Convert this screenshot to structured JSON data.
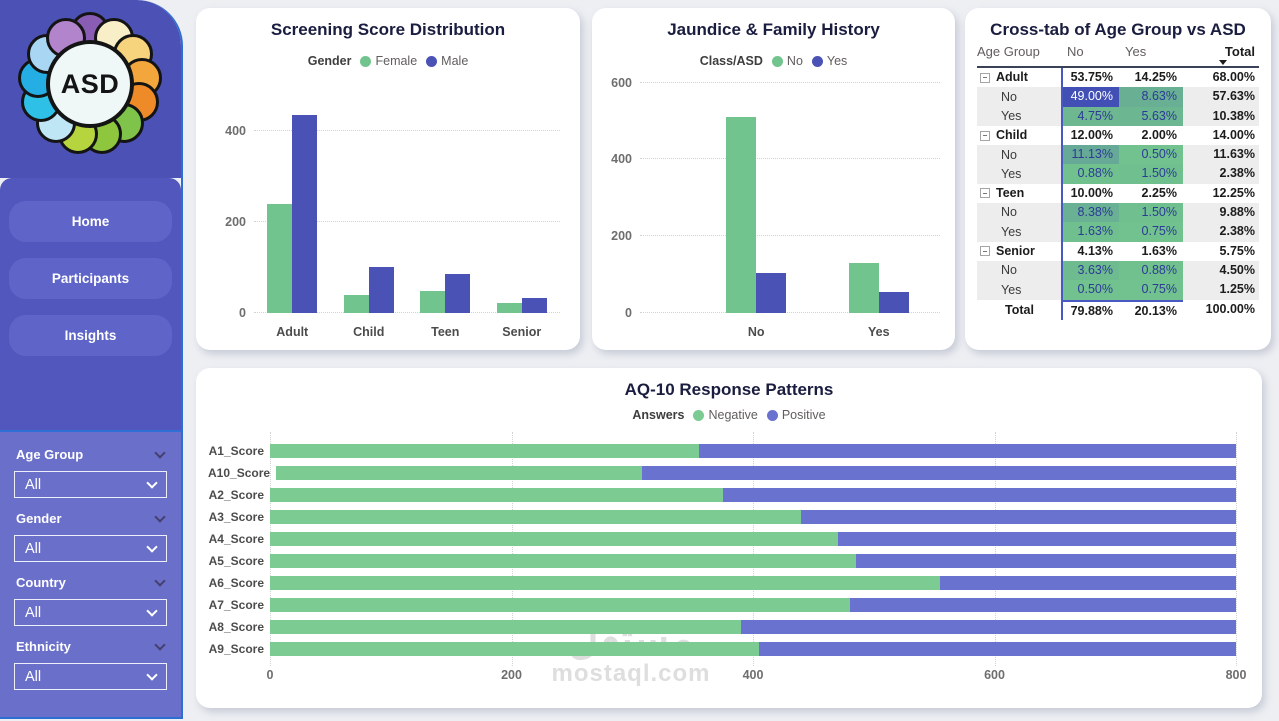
{
  "sidebar": {
    "logo": {
      "text": "ASD",
      "petal_colors": [
        "#8a5db4",
        "#f8efc9",
        "#f6d47e",
        "#f2a63b",
        "#ee8a27",
        "#7fc34a",
        "#8ec63e",
        "#b5d43e",
        "#bfe6f5",
        "#2fc0e8",
        "#25aee3",
        "#a9d7f3",
        "#b184cb"
      ]
    },
    "nav": [
      {
        "label": "Home"
      },
      {
        "label": "Participants"
      },
      {
        "label": "Insights"
      }
    ],
    "filters": [
      {
        "label": "Age Group",
        "value": "All"
      },
      {
        "label": "Gender",
        "value": "All"
      },
      {
        "label": "Country",
        "value": "All"
      },
      {
        "label": "Ethnicity",
        "value": "All"
      }
    ]
  },
  "watermark": {
    "arabic": "مستقل",
    "domain": "mostaql.com"
  },
  "chart_data": [
    {
      "type": "bar",
      "title": "Screening Score Distribution",
      "legend_title": "Gender",
      "legend_position": "top",
      "grid": true,
      "categories": [
        "Adult",
        "Child",
        "Teen",
        "Senior"
      ],
      "series": [
        {
          "name": "Female",
          "color": "#72c48e",
          "values": [
            240,
            40,
            48,
            22
          ]
        },
        {
          "name": "Male",
          "color": "#4b52b6",
          "values": [
            435,
            100,
            85,
            32
          ]
        }
      ],
      "yticks": [
        0,
        200,
        400
      ],
      "ylim": [
        0,
        450
      ],
      "xlabel": "",
      "ylabel": ""
    },
    {
      "type": "bar",
      "title": "Jaundice & Family History",
      "legend_title": "Class/ASD",
      "legend_position": "top",
      "grid": true,
      "categories": [
        "No",
        "Yes"
      ],
      "series": [
        {
          "name": "No",
          "color": "#72c48e",
          "values": [
            510,
            130
          ]
        },
        {
          "name": "Yes",
          "color": "#4b52b6",
          "values": [
            105,
            55
          ]
        }
      ],
      "yticks": [
        0,
        200,
        400,
        600
      ],
      "ylim": [
        0,
        620
      ],
      "xlabel": "",
      "ylabel": ""
    },
    {
      "type": "table",
      "title": "Cross-tab of Age Group vs ASD",
      "columns": [
        "Age Group",
        "No",
        "Yes",
        "Total"
      ],
      "sorted_by": "Total",
      "rows": [
        {
          "level": "parent",
          "label": "Adult",
          "no": "53.75%",
          "yes": "14.25%",
          "total": "68.00%"
        },
        {
          "level": "sub",
          "label": "No",
          "no": "49.00%",
          "yes": "8.63%",
          "total": "57.63%",
          "no_bg": "#4250b5",
          "no_fg": "#ffffff",
          "yes_bg": "#69af94",
          "yes_fg": "#2c3a96"
        },
        {
          "level": "sub",
          "label": "Yes",
          "no": "4.75%",
          "yes": "5.63%",
          "total": "10.38%",
          "no_bg": "#6db891",
          "no_fg": "#2c3a96",
          "yes_bg": "#6cb692",
          "yes_fg": "#2c3a96"
        },
        {
          "level": "parent",
          "label": "Child",
          "no": "12.00%",
          "yes": "2.00%",
          "total": "14.00%"
        },
        {
          "level": "sub",
          "label": "No",
          "no": "11.13%",
          "yes": "0.50%",
          "total": "11.63%",
          "no_bg": "#67a997",
          "no_fg": "#2c3a96",
          "yes_bg": "#71c28e",
          "yes_fg": "#2c3a96"
        },
        {
          "level": "sub",
          "label": "Yes",
          "no": "0.88%",
          "yes": "1.50%",
          "total": "2.38%",
          "no_bg": "#71c18e",
          "no_fg": "#2c3a96",
          "yes_bg": "#70c08f",
          "yes_fg": "#2c3a96"
        },
        {
          "level": "parent",
          "label": "Teen",
          "no": "10.00%",
          "yes": "2.25%",
          "total": "12.25%"
        },
        {
          "level": "sub",
          "label": "No",
          "no": "8.38%",
          "yes": "1.50%",
          "total": "9.88%",
          "no_bg": "#69b094",
          "no_fg": "#2c3a96",
          "yes_bg": "#70c08f",
          "yes_fg": "#2c3a96"
        },
        {
          "level": "sub",
          "label": "Yes",
          "no": "1.63%",
          "yes": "0.75%",
          "total": "2.38%",
          "no_bg": "#70c08f",
          "no_fg": "#2c3a96",
          "yes_bg": "#71c28e",
          "yes_fg": "#2c3a96"
        },
        {
          "level": "parent",
          "label": "Senior",
          "no": "4.13%",
          "yes": "1.63%",
          "total": "5.75%"
        },
        {
          "level": "sub",
          "label": "No",
          "no": "3.63%",
          "yes": "0.88%",
          "total": "4.50%",
          "no_bg": "#6ebb90",
          "no_fg": "#2c3a96",
          "yes_bg": "#71c18e",
          "yes_fg": "#2c3a96"
        },
        {
          "level": "sub",
          "label": "Yes",
          "no": "0.50%",
          "yes": "0.75%",
          "total": "1.25%",
          "no_bg": "#71c28e",
          "no_fg": "#2c3a96",
          "yes_bg": "#71c28e",
          "yes_fg": "#2c3a96"
        },
        {
          "level": "grand",
          "label": "Total",
          "no": "79.88%",
          "yes": "20.13%",
          "total": "100.00%"
        }
      ]
    },
    {
      "type": "bar",
      "orientation": "horizontal",
      "stacked": true,
      "title": "AQ-10 Response Patterns",
      "legend_title": "Answers",
      "legend_position": "top",
      "grid": true,
      "categories": [
        "A1_Score",
        "A10_Score",
        "A2_Score",
        "A3_Score",
        "A4_Score",
        "A5_Score",
        "A6_Score",
        "A7_Score",
        "A8_Score",
        "A9_Score"
      ],
      "series": [
        {
          "name": "Negative",
          "color": "#7ccb92",
          "values": [
            355,
            305,
            375,
            440,
            470,
            485,
            555,
            480,
            390,
            405
          ]
        },
        {
          "name": "Positive",
          "color": "#6a72d0",
          "values": [
            445,
            495,
            425,
            360,
            330,
            315,
            245,
            320,
            410,
            395
          ]
        }
      ],
      "xticks": [
        0,
        200,
        400,
        600,
        800
      ],
      "xlim": [
        0,
        800
      ],
      "xlabel": "",
      "ylabel": ""
    }
  ]
}
